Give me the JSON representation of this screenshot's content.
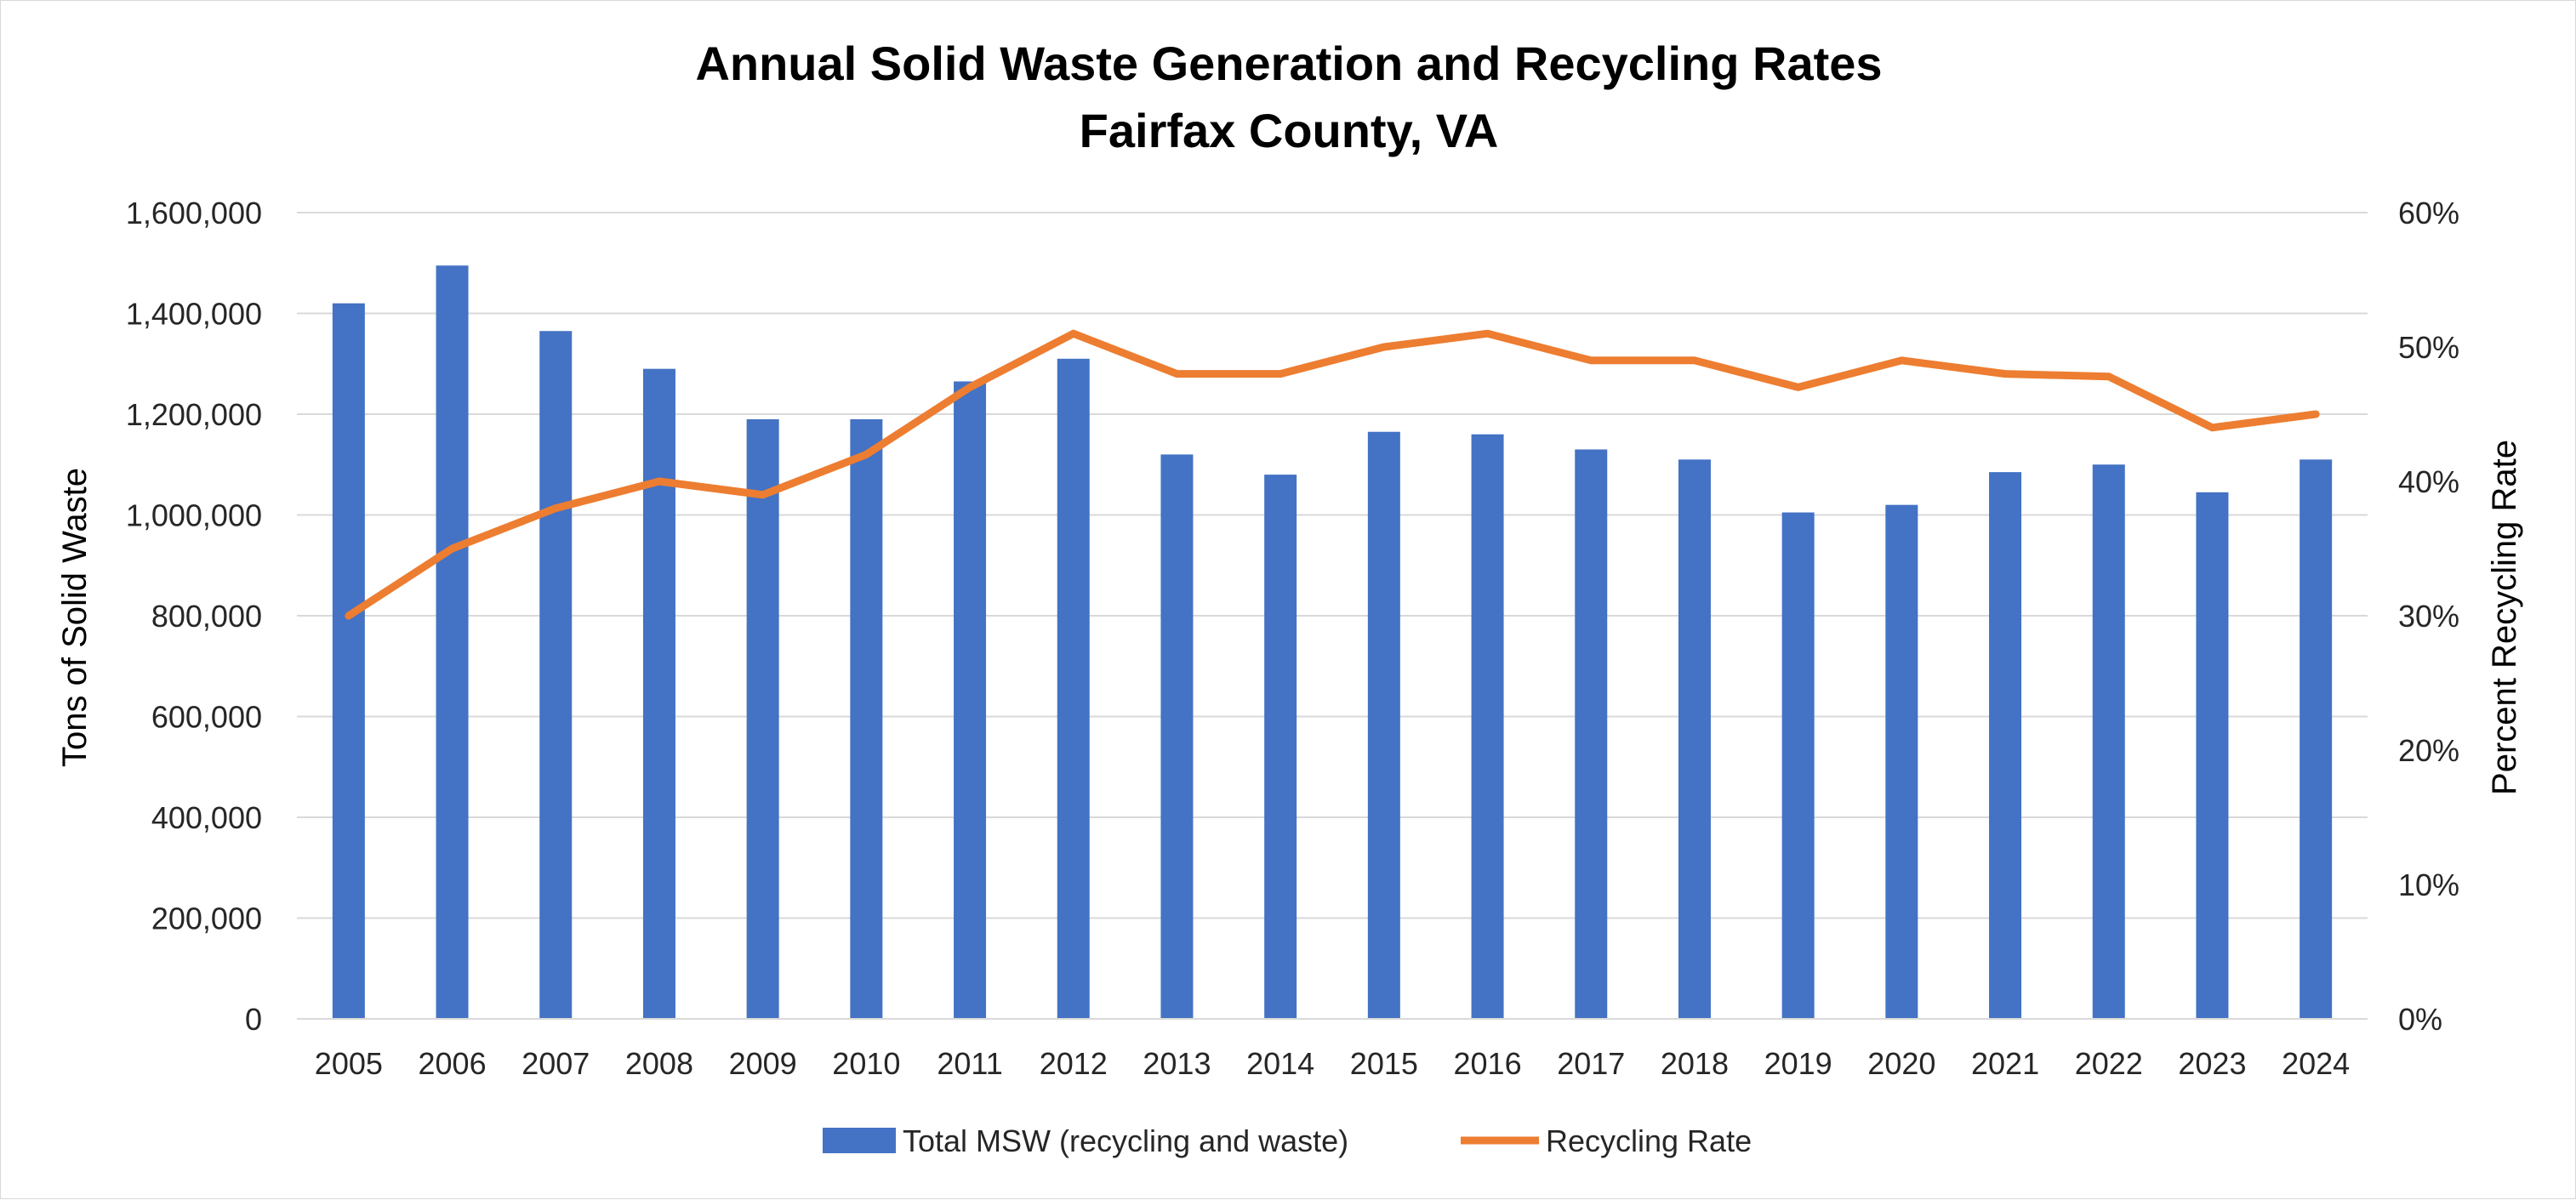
{
  "chart_data": {
    "type": "bar",
    "title": "Annual Solid Waste Generation and Recycling Rates",
    "subtitle": "Fairfax County, VA",
    "categories": [
      "2005",
      "2006",
      "2007",
      "2008",
      "2009",
      "2010",
      "2011",
      "2012",
      "2013",
      "2014",
      "2015",
      "2016",
      "2017",
      "2018",
      "2019",
      "2020",
      "2021",
      "2022",
      "2023",
      "2024"
    ],
    "series": [
      {
        "name": "Total MSW (recycling and waste)",
        "type": "bar",
        "axis": "left",
        "color": "#4472c4",
        "values": [
          1420000,
          1495000,
          1365000,
          1290000,
          1190000,
          1190000,
          1265000,
          1310000,
          1120000,
          1080000,
          1165000,
          1160000,
          1130000,
          1110000,
          1005000,
          1020000,
          1085000,
          1100000,
          1045000,
          1110000
        ]
      },
      {
        "name": "Recycling Rate",
        "type": "line",
        "axis": "right",
        "color": "#ed7d31",
        "values": [
          30,
          35,
          38,
          40,
          39,
          42,
          47,
          51,
          48,
          48,
          50,
          51,
          49,
          49,
          47,
          49,
          48,
          47.8,
          44,
          45
        ]
      }
    ],
    "ylabel": "Tons of Solid Waste",
    "y2label": "Percent Recycling Rate",
    "ylim": [
      0,
      1600000
    ],
    "y2lim": [
      0,
      60
    ],
    "yticks": [
      "0",
      "200,000",
      "400,000",
      "600,000",
      "800,000",
      "1,000,000",
      "1,200,000",
      "1,400,000",
      "1,600,000"
    ],
    "y2ticks": [
      "0%",
      "10%",
      "20%",
      "30%",
      "40%",
      "50%",
      "60%"
    ],
    "grid": true,
    "legend": "bottom-center"
  }
}
